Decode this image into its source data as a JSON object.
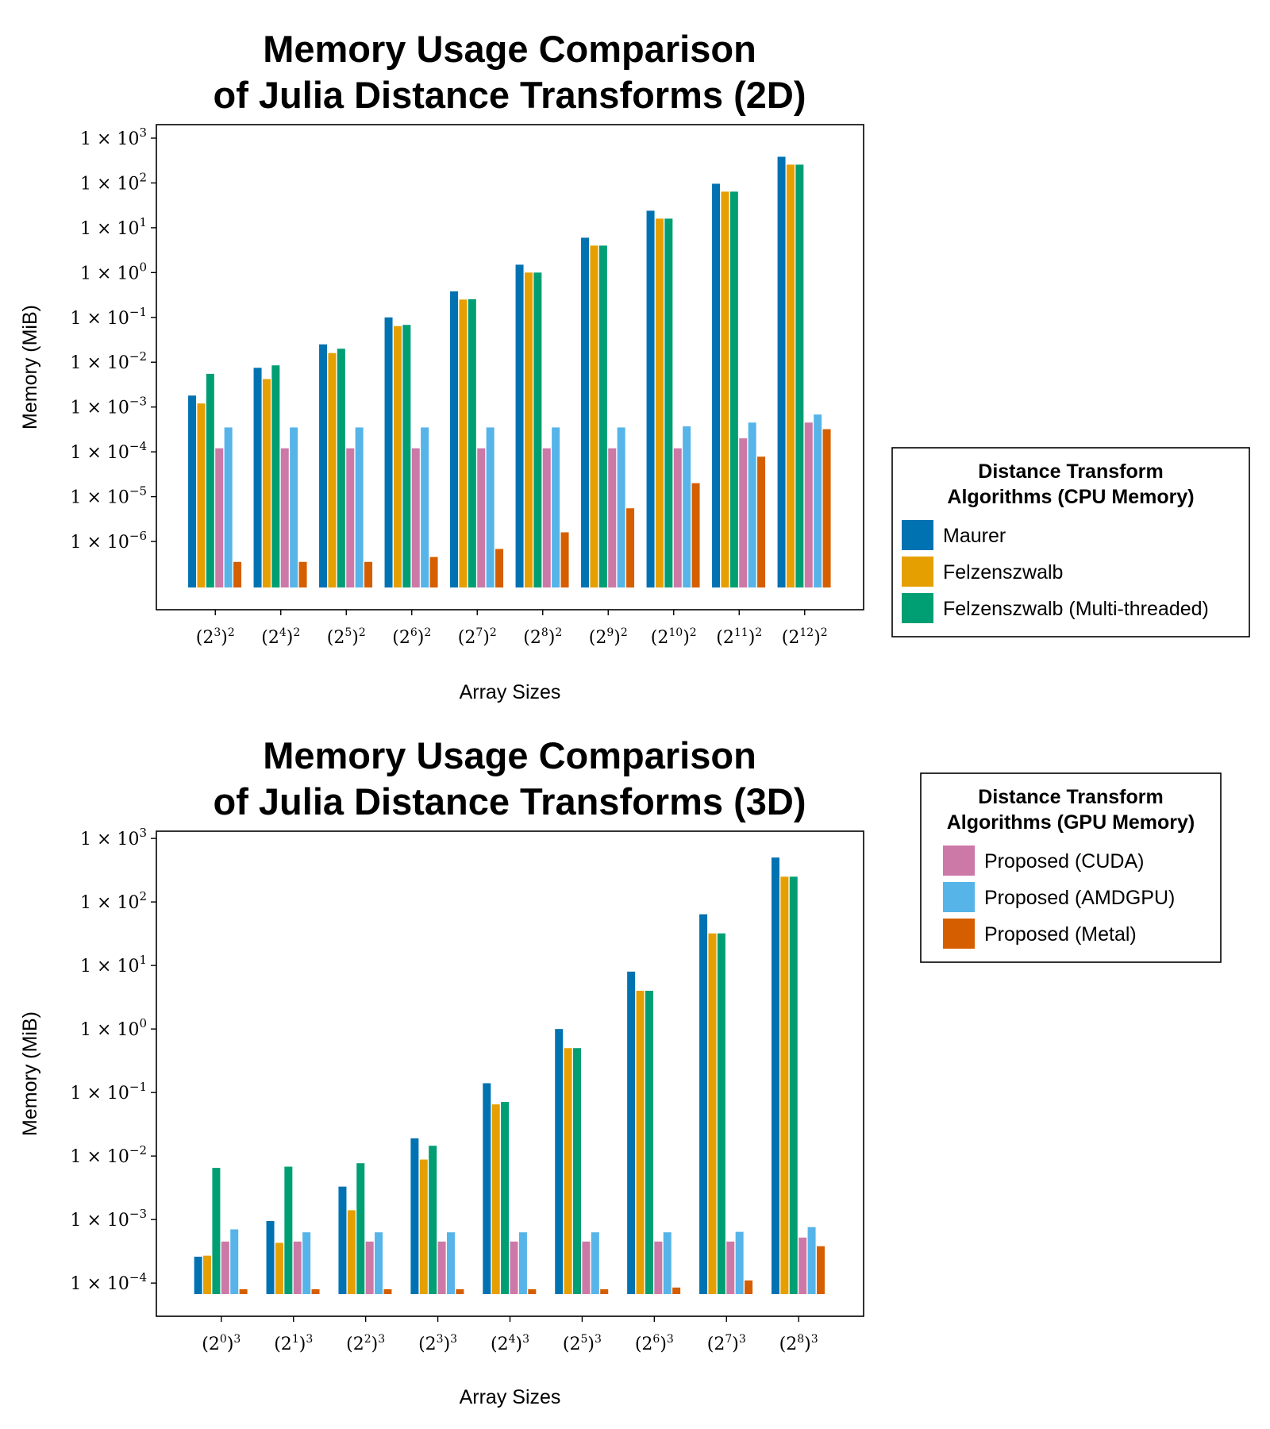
{
  "chart_data": [
    {
      "type": "bar",
      "title": [
        "Memory Usage Comparison",
        "of Julia Distance Transforms (2D)"
      ],
      "xlabel": "Array Sizes",
      "ylabel": "Memory (MiB)",
      "yscale": "log10",
      "ylim": [
        3e-08,
        2000
      ],
      "y_ticks": [
        1e-06,
        1e-05,
        0.0001,
        0.001,
        0.01,
        0.1,
        1,
        10,
        100,
        1000
      ],
      "y_tick_labels": [
        {
          "base": "1 × 10",
          "exp": "−6"
        },
        {
          "base": "1 × 10",
          "exp": "−5"
        },
        {
          "base": "1 × 10",
          "exp": "−4"
        },
        {
          "base": "1 × 10",
          "exp": "−3"
        },
        {
          "base": "1 × 10",
          "exp": "−2"
        },
        {
          "base": "1 × 10",
          "exp": "−1"
        },
        {
          "base": "1 × 10",
          "exp": "0"
        },
        {
          "base": "1 × 10",
          "exp": "1"
        },
        {
          "base": "1 × 10",
          "exp": "2"
        },
        {
          "base": "1 × 10",
          "exp": "3"
        }
      ],
      "categories": [
        {
          "exp": "3",
          "outer": "2"
        },
        {
          "exp": "4",
          "outer": "2"
        },
        {
          "exp": "5",
          "outer": "2"
        },
        {
          "exp": "6",
          "outer": "2"
        },
        {
          "exp": "7",
          "outer": "2"
        },
        {
          "exp": "8",
          "outer": "2"
        },
        {
          "exp": "9",
          "outer": "2"
        },
        {
          "exp": "10",
          "outer": "2"
        },
        {
          "exp": "11",
          "outer": "2"
        },
        {
          "exp": "12",
          "outer": "2"
        }
      ],
      "series": [
        {
          "name": "Maurer",
          "color": "#0072b2",
          "values": [
            0.0018,
            0.0075,
            0.025,
            0.1,
            0.38,
            1.5,
            6.0,
            24,
            96,
            384
          ]
        },
        {
          "name": "Felzenszwalb",
          "color": "#e69f00",
          "values": [
            0.0012,
            0.0042,
            0.016,
            0.064,
            0.25,
            1.0,
            4.0,
            16,
            64,
            256
          ]
        },
        {
          "name": "Felzenszwalb (Multi-threaded)",
          "color": "#009e73",
          "values": [
            0.0055,
            0.0085,
            0.02,
            0.068,
            0.255,
            1.0,
            4.0,
            16,
            64,
            256
          ]
        },
        {
          "name": "Proposed (CUDA)",
          "color": "#cc79a7",
          "values": [
            0.00012,
            0.00012,
            0.00012,
            0.00012,
            0.00012,
            0.00012,
            0.00012,
            0.00012,
            0.0002,
            0.00045
          ]
        },
        {
          "name": "Proposed (AMDGPU)",
          "color": "#56b4e9",
          "values": [
            0.00035,
            0.00035,
            0.00035,
            0.00035,
            0.00035,
            0.00035,
            0.00035,
            0.00037,
            0.00045,
            0.00068
          ]
        },
        {
          "name": "Proposed (Metal)",
          "color": "#d55e00",
          "values": [
            3.5e-07,
            3.5e-07,
            3.5e-07,
            4.5e-07,
            6.8e-07,
            1.6e-06,
            5.5e-06,
            2e-05,
            7.8e-05,
            0.00032
          ]
        }
      ],
      "legend": {
        "title": [
          "Distance Transform",
          "Algorithms (CPU Memory)"
        ],
        "entries": [
          0,
          1,
          2
        ]
      }
    },
    {
      "type": "bar",
      "title": [
        "Memory Usage Comparison",
        "of Julia Distance Transforms (3D)"
      ],
      "xlabel": "Array Sizes",
      "ylabel": "Memory (MiB)",
      "yscale": "log10",
      "ylim": [
        3e-05,
        1300
      ],
      "y_ticks": [
        0.0001,
        0.001,
        0.01,
        0.1,
        1,
        10,
        100,
        1000
      ],
      "y_tick_labels": [
        {
          "base": "1 × 10",
          "exp": "−4"
        },
        {
          "base": "1 × 10",
          "exp": "−3"
        },
        {
          "base": "1 × 10",
          "exp": "−2"
        },
        {
          "base": "1 × 10",
          "exp": "−1"
        },
        {
          "base": "1 × 10",
          "exp": "0"
        },
        {
          "base": "1 × 10",
          "exp": "1"
        },
        {
          "base": "1 × 10",
          "exp": "2"
        },
        {
          "base": "1 × 10",
          "exp": "3"
        }
      ],
      "categories": [
        {
          "exp": "0",
          "outer": "3"
        },
        {
          "exp": "1",
          "outer": "3"
        },
        {
          "exp": "2",
          "outer": "3"
        },
        {
          "exp": "3",
          "outer": "3"
        },
        {
          "exp": "4",
          "outer": "3"
        },
        {
          "exp": "5",
          "outer": "3"
        },
        {
          "exp": "6",
          "outer": "3"
        },
        {
          "exp": "7",
          "outer": "3"
        },
        {
          "exp": "8",
          "outer": "3"
        }
      ],
      "series": [
        {
          "name": "Maurer",
          "color": "#0072b2",
          "values": [
            0.00026,
            0.00095,
            0.0033,
            0.019,
            0.14,
            1.0,
            8.0,
            64,
            500
          ]
        },
        {
          "name": "Felzenszwalb",
          "color": "#e69f00",
          "values": [
            0.00027,
            0.00043,
            0.0014,
            0.0088,
            0.065,
            0.5,
            4.0,
            32,
            250
          ]
        },
        {
          "name": "Felzenszwalb (Multi-threaded)",
          "color": "#009e73",
          "values": [
            0.0065,
            0.0068,
            0.0077,
            0.0145,
            0.071,
            0.5,
            4.0,
            32,
            250
          ]
        },
        {
          "name": "Proposed (CUDA)",
          "color": "#cc79a7",
          "values": [
            0.00045,
            0.00045,
            0.00045,
            0.00045,
            0.00045,
            0.00045,
            0.00045,
            0.00045,
            0.00052
          ]
        },
        {
          "name": "Proposed (AMDGPU)",
          "color": "#56b4e9",
          "values": [
            0.0007,
            0.00063,
            0.00063,
            0.00063,
            0.00063,
            0.00063,
            0.00063,
            0.00064,
            0.00076
          ]
        },
        {
          "name": "Proposed (Metal)",
          "color": "#d55e00",
          "values": [
            8e-05,
            8e-05,
            8e-05,
            8e-05,
            8e-05,
            8e-05,
            8.5e-05,
            0.00011,
            0.00038
          ]
        }
      ],
      "legend": {
        "title": [
          "Distance Transform",
          "Algorithms (GPU Memory)"
        ],
        "entries": [
          3,
          4,
          5
        ]
      }
    }
  ]
}
